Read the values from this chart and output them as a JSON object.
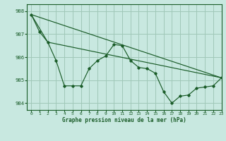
{
  "title": "Graphe pression niveau de la mer (hPa)",
  "bg_color": "#c8e8e0",
  "grid_color": "#a0c8b8",
  "line_color": "#1a5c28",
  "xlim": [
    -0.5,
    23
  ],
  "ylim": [
    983.7,
    988.3
  ],
  "yticks": [
    984,
    985,
    986,
    987,
    988
  ],
  "xticks": [
    0,
    1,
    2,
    3,
    4,
    5,
    6,
    7,
    8,
    9,
    10,
    11,
    12,
    13,
    14,
    15,
    16,
    17,
    18,
    19,
    20,
    21,
    22,
    23
  ],
  "series1_x": [
    0,
    1,
    2,
    3,
    4,
    5,
    6,
    7,
    8,
    9,
    10,
    11,
    12,
    13,
    14,
    15,
    16,
    17,
    18,
    19,
    20,
    21,
    22,
    23
  ],
  "series1_y": [
    987.85,
    987.1,
    986.65,
    985.85,
    984.75,
    984.75,
    984.75,
    985.5,
    985.85,
    986.05,
    986.55,
    986.5,
    985.85,
    985.55,
    985.5,
    985.3,
    984.5,
    984.0,
    984.3,
    984.35,
    984.65,
    984.7,
    984.75,
    985.1
  ],
  "trend1_x": [
    0,
    23
  ],
  "trend1_y": [
    987.85,
    985.1
  ],
  "trend2_x": [
    0,
    2,
    23
  ],
  "trend2_y": [
    987.85,
    986.65,
    985.1
  ]
}
